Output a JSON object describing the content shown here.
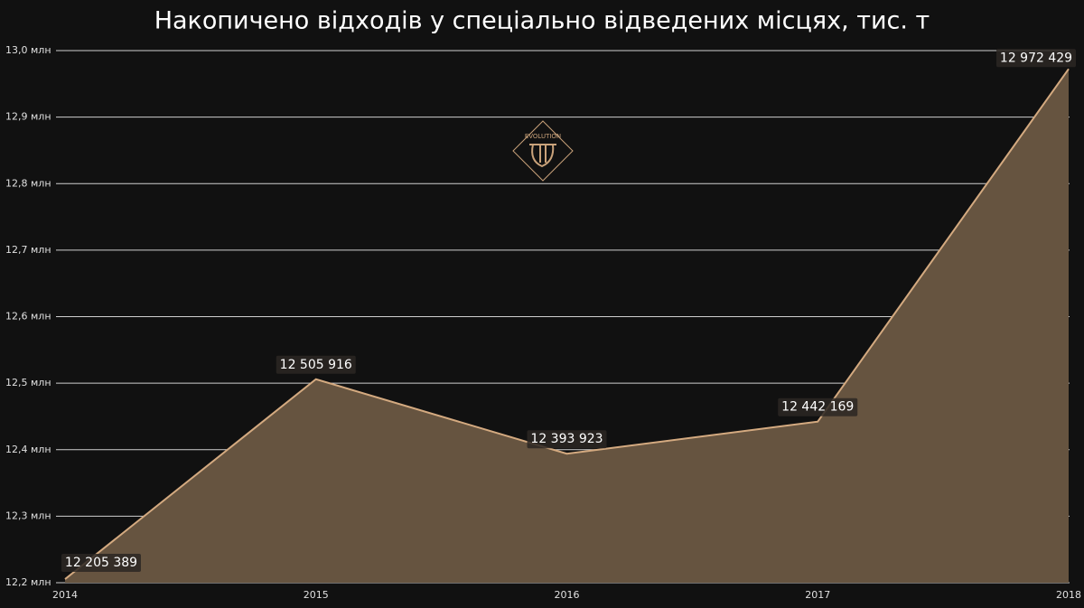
{
  "chart_data": {
    "type": "area",
    "title": "Накопичено відходів у спеціально відведених місцях, тис. т",
    "logo": "EVOLUTION",
    "categories": [
      "2014",
      "2015",
      "2016",
      "2017",
      "2018"
    ],
    "series": [
      {
        "name": "Накопичено",
        "color": "#d4aa80",
        "fill": "#665440",
        "values": [
          12205389,
          12505916,
          12393923,
          12442169,
          12972429
        ],
        "value_labels": [
          "12 205 389",
          "12 505 916",
          "12 393 923",
          "12 442 169",
          "12 972 429"
        ]
      }
    ],
    "ylim": [
      12200000,
      13000000
    ],
    "yticks": [
      {
        "value": 12200000,
        "label": "12,2 млн"
      },
      {
        "value": 12300000,
        "label": "12,3 млн"
      },
      {
        "value": 12400000,
        "label": "12,4 млн"
      },
      {
        "value": 12500000,
        "label": "12,5 млн"
      },
      {
        "value": 12600000,
        "label": "12,6 млн"
      },
      {
        "value": 12700000,
        "label": "12,7 млн"
      },
      {
        "value": 12800000,
        "label": "12,8 млн"
      },
      {
        "value": 12900000,
        "label": "12,9 млн"
      },
      {
        "value": 13000000,
        "label": "13,0 млн"
      }
    ],
    "grid": true
  }
}
